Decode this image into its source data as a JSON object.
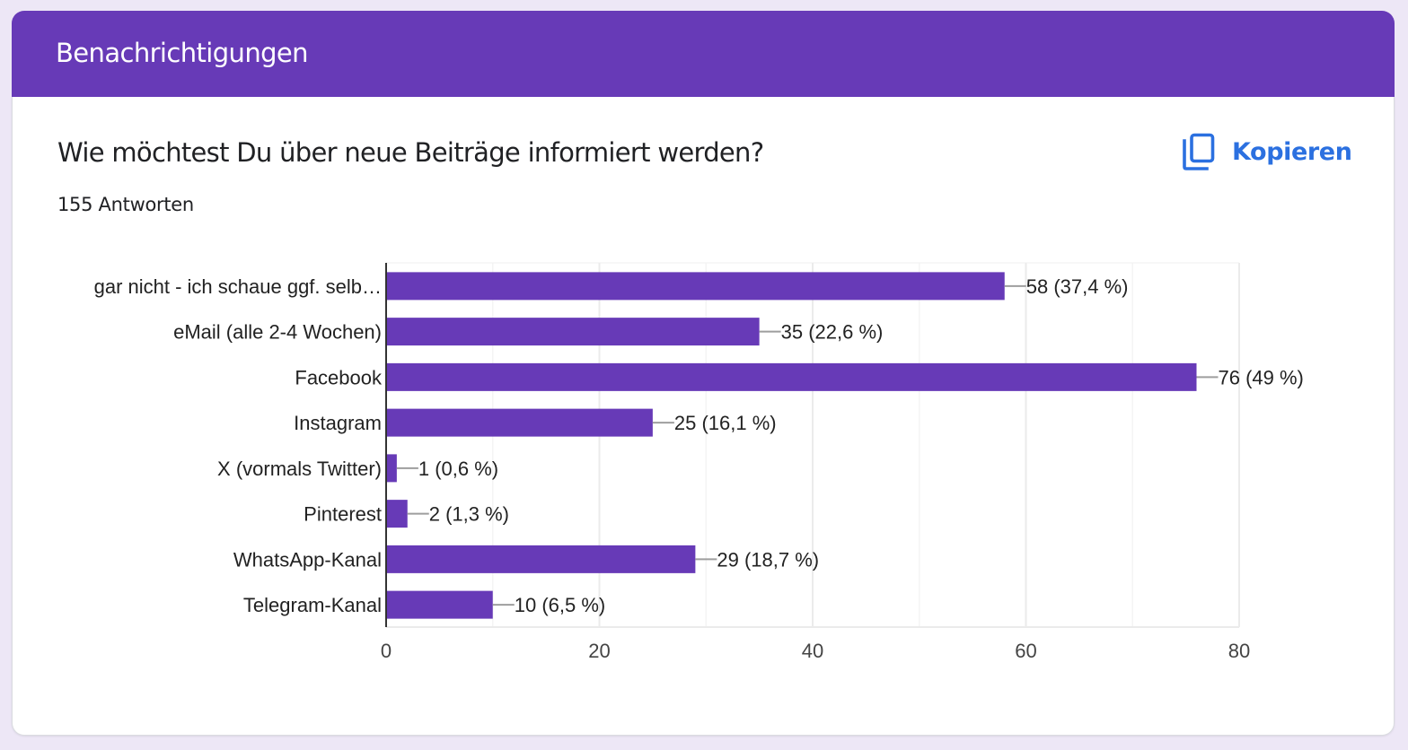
{
  "section": {
    "title": "Benachrichtigungen"
  },
  "question": {
    "title": "Wie möchtest Du über neue Beiträge informiert werden?",
    "response_count": "155 Antworten",
    "copy_label": "Kopieren",
    "copy_icon": "content-copy-icon"
  },
  "colors": {
    "header": "#673ab7",
    "bar": "#673ab7",
    "accent": "#1a73e8",
    "page_background": "#ede7f6"
  },
  "chart_data": {
    "type": "bar",
    "orientation": "horizontal",
    "title": "",
    "xlabel": "",
    "ylabel": "",
    "categories": [
      "gar nicht - ich schaue ggf. selb…",
      "eMail (alle 2-4 Wochen)",
      "Facebook",
      "Instagram",
      "X (vormals Twitter)",
      "Pinterest",
      "WhatsApp-Kanal",
      "Telegram-Kanal"
    ],
    "values": [
      58,
      35,
      76,
      25,
      1,
      2,
      29,
      10
    ],
    "data_labels": [
      "58 (37,4 %)",
      "35 (22,6 %)",
      "76 (49 %)",
      "25 (16,1 %)",
      "1 (0,6 %)",
      "2 (1,3 %)",
      "29 (18,7 %)",
      "10 (6,5 %)"
    ],
    "xlim": [
      0,
      80
    ],
    "x_ticks": [
      0,
      20,
      40,
      60,
      80
    ],
    "x_tick_labels": [
      "0",
      "20",
      "40",
      "60",
      "80"
    ],
    "minor_gridlines": [
      10,
      30,
      50,
      70
    ],
    "grid": true,
    "legend": "none"
  }
}
